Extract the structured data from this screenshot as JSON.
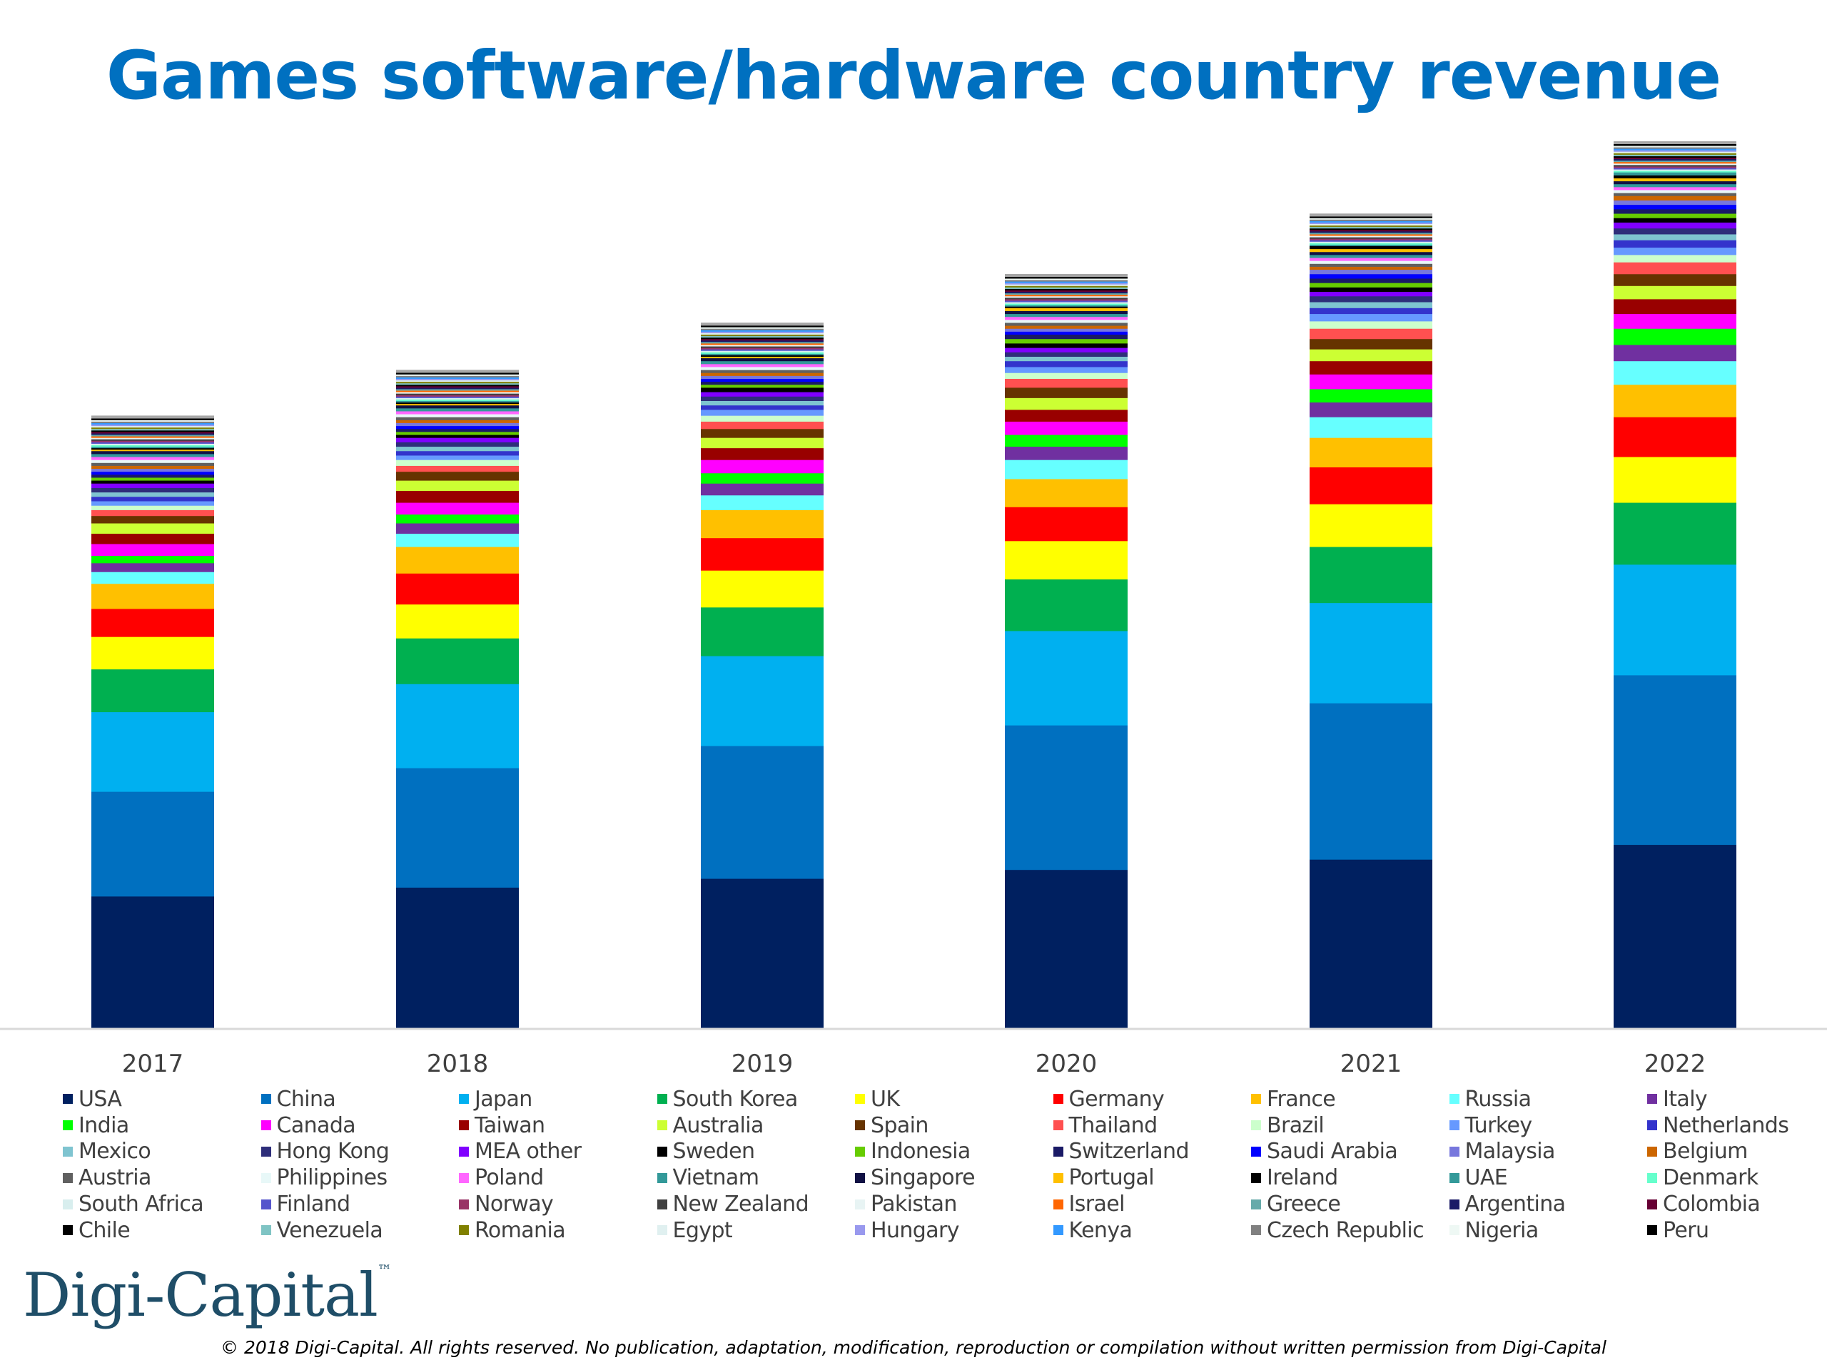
{
  "title": "Games software/hardware country revenue",
  "logo": {
    "text": "Digi-Capital",
    "tm": "™"
  },
  "copyright": "© 2018 Digi-Capital. All rights reserved. No publication, adaptation, modification, reproduction or compilation without written permission from Digi-Capital",
  "chart_data": {
    "type": "bar",
    "stacked": true,
    "title": "Games software/hardware country revenue",
    "xlabel": "",
    "ylabel": "",
    "y_axis_visible": false,
    "grid": false,
    "legend_position": "bottom",
    "categories": [
      "2017",
      "2018",
      "2019",
      "2020",
      "2021",
      "2022"
    ],
    "series": [
      {
        "name": "USA",
        "color": "#002060",
        "values": [
          180,
          192,
          204,
          216,
          230,
          250
        ]
      },
      {
        "name": "China",
        "color": "#0070c0",
        "values": [
          142,
          162,
          180,
          196,
          212,
          230
        ]
      },
      {
        "name": "Japan",
        "color": "#00b0f0",
        "values": [
          108,
          114,
          122,
          128,
          136,
          150
        ]
      },
      {
        "name": "South Korea",
        "color": "#00b050",
        "values": [
          58,
          62,
          66,
          70,
          76,
          84
        ]
      },
      {
        "name": "UK",
        "color": "#ffff00",
        "values": [
          44,
          46,
          50,
          52,
          58,
          62
        ]
      },
      {
        "name": "Germany",
        "color": "#ff0000",
        "values": [
          38,
          42,
          44,
          46,
          50,
          54
        ]
      },
      {
        "name": "France",
        "color": "#ffc000",
        "values": [
          34,
          36,
          38,
          38,
          40,
          44
        ]
      },
      {
        "name": "Russia",
        "color": "#66ffff",
        "values": [
          16,
          18,
          20,
          26,
          28,
          32
        ]
      },
      {
        "name": "Italy",
        "color": "#7030a0",
        "values": [
          12,
          14,
          16,
          18,
          20,
          22
        ]
      },
      {
        "name": "India",
        "color": "#00ff00",
        "values": [
          10,
          12,
          14,
          16,
          18,
          22
        ]
      },
      {
        "name": "Canada",
        "color": "#ff00ff",
        "values": [
          16,
          16,
          18,
          18,
          20,
          20
        ]
      },
      {
        "name": "Taiwan",
        "color": "#990000",
        "values": [
          14,
          16,
          16,
          16,
          18,
          20
        ]
      },
      {
        "name": "Australia",
        "color": "#ccff33",
        "values": [
          14,
          14,
          14,
          16,
          16,
          18
        ]
      },
      {
        "name": "Spain",
        "color": "#663300",
        "values": [
          10,
          12,
          12,
          14,
          14,
          16
        ]
      },
      {
        "name": "Thailand",
        "color": "#ff5050",
        "values": [
          8,
          8,
          10,
          12,
          14,
          16
        ]
      },
      {
        "name": "Brazil",
        "color": "#ccffcc",
        "values": [
          6,
          8,
          8,
          8,
          10,
          10
        ]
      },
      {
        "name": "Turkey",
        "color": "#6699ff",
        "values": [
          6,
          6,
          8,
          8,
          10,
          10
        ]
      },
      {
        "name": "Netherlands",
        "color": "#3333cc",
        "values": [
          6,
          6,
          6,
          8,
          8,
          10
        ]
      },
      {
        "name": "Mexico",
        "color": "#7fc4d0",
        "values": [
          6,
          6,
          6,
          6,
          8,
          8
        ]
      },
      {
        "name": "Hong Kong",
        "color": "#2e2e7a",
        "values": [
          6,
          6,
          6,
          6,
          8,
          8
        ]
      },
      {
        "name": "MEA other",
        "color": "#8000ff",
        "values": [
          6,
          6,
          6,
          6,
          6,
          8
        ]
      },
      {
        "name": "Sweden",
        "color": "#000000",
        "values": [
          4,
          4,
          6,
          6,
          6,
          6
        ]
      },
      {
        "name": "Indonesia",
        "color": "#66cc00",
        "values": [
          4,
          4,
          4,
          6,
          6,
          6
        ]
      },
      {
        "name": "Switzerland",
        "color": "#1a1a66",
        "values": [
          4,
          4,
          4,
          6,
          6,
          6
        ]
      },
      {
        "name": "Saudi Arabia",
        "color": "#0000ff",
        "values": [
          4,
          4,
          4,
          4,
          6,
          6
        ]
      },
      {
        "name": "Malaysia",
        "color": "#7777dd",
        "values": [
          4,
          4,
          4,
          4,
          6,
          6
        ]
      },
      {
        "name": "Belgium",
        "color": "#cc6600",
        "values": [
          4,
          4,
          4,
          4,
          4,
          6
        ]
      },
      {
        "name": "Austria",
        "color": "#606060",
        "values": [
          4,
          4,
          4,
          4,
          4,
          4
        ]
      },
      {
        "name": "Philippines",
        "color": "#e8f8f8",
        "values": [
          4,
          4,
          4,
          4,
          4,
          4
        ]
      },
      {
        "name": "Poland",
        "color": "#ff66ff",
        "values": [
          4,
          4,
          4,
          4,
          4,
          4
        ]
      },
      {
        "name": "Vietnam",
        "color": "#339999",
        "values": [
          4,
          4,
          4,
          4,
          4,
          4
        ]
      },
      {
        "name": "Singapore",
        "color": "#111144",
        "values": [
          4,
          4,
          4,
          4,
          4,
          4
        ]
      },
      {
        "name": "Portugal",
        "color": "#ffc000",
        "values": [
          2,
          2,
          2,
          4,
          4,
          4
        ]
      },
      {
        "name": "Ireland",
        "color": "#000000",
        "values": [
          2,
          2,
          2,
          2,
          4,
          4
        ]
      },
      {
        "name": "UAE",
        "color": "#339999",
        "values": [
          2,
          2,
          2,
          2,
          2,
          4
        ]
      },
      {
        "name": "Denmark",
        "color": "#66ffcc",
        "values": [
          2,
          2,
          2,
          2,
          2,
          2
        ]
      },
      {
        "name": "South Africa",
        "color": "#d8eeee",
        "values": [
          2,
          2,
          2,
          2,
          2,
          2
        ]
      },
      {
        "name": "Finland",
        "color": "#5555cc",
        "values": [
          2,
          2,
          2,
          2,
          2,
          2
        ]
      },
      {
        "name": "Norway",
        "color": "#993366",
        "values": [
          2,
          2,
          2,
          2,
          2,
          2
        ]
      },
      {
        "name": "New Zealand",
        "color": "#404040",
        "values": [
          2,
          2,
          2,
          2,
          2,
          2
        ]
      },
      {
        "name": "Pakistan",
        "color": "#e8f4f4",
        "values": [
          2,
          2,
          2,
          2,
          2,
          2
        ]
      },
      {
        "name": "Israel",
        "color": "#ff6600",
        "values": [
          2,
          2,
          2,
          2,
          2,
          2
        ]
      },
      {
        "name": "Greece",
        "color": "#66aaaa",
        "values": [
          2,
          2,
          2,
          2,
          2,
          2
        ]
      },
      {
        "name": "Argentina",
        "color": "#1a1a66",
        "values": [
          2,
          2,
          2,
          2,
          2,
          2
        ]
      },
      {
        "name": "Colombia",
        "color": "#660033",
        "values": [
          2,
          2,
          2,
          2,
          2,
          2
        ]
      },
      {
        "name": "Chile",
        "color": "#000000",
        "values": [
          2,
          2,
          2,
          2,
          2,
          2
        ]
      },
      {
        "name": "Venezuela",
        "color": "#7fc4c4",
        "values": [
          2,
          2,
          2,
          2,
          2,
          2
        ]
      },
      {
        "name": "Romania",
        "color": "#808000",
        "values": [
          2,
          2,
          2,
          2,
          2,
          2
        ]
      },
      {
        "name": "Egypt",
        "color": "#e0f0f0",
        "values": [
          2,
          2,
          2,
          2,
          2,
          2
        ]
      },
      {
        "name": "Hungary",
        "color": "#9999ee",
        "values": [
          2,
          2,
          2,
          2,
          2,
          2
        ]
      },
      {
        "name": "Kenya",
        "color": "#3399ff",
        "values": [
          2,
          2,
          2,
          2,
          2,
          2
        ]
      },
      {
        "name": "Czech Republic",
        "color": "#808080",
        "values": [
          2,
          2,
          2,
          2,
          2,
          2
        ]
      },
      {
        "name": "Nigeria",
        "color": "#eef8f4",
        "values": [
          2,
          2,
          2,
          2,
          2,
          2
        ]
      },
      {
        "name": "Peru",
        "color": "#000000",
        "values": [
          2,
          2,
          2,
          2,
          2,
          2
        ]
      }
    ]
  }
}
